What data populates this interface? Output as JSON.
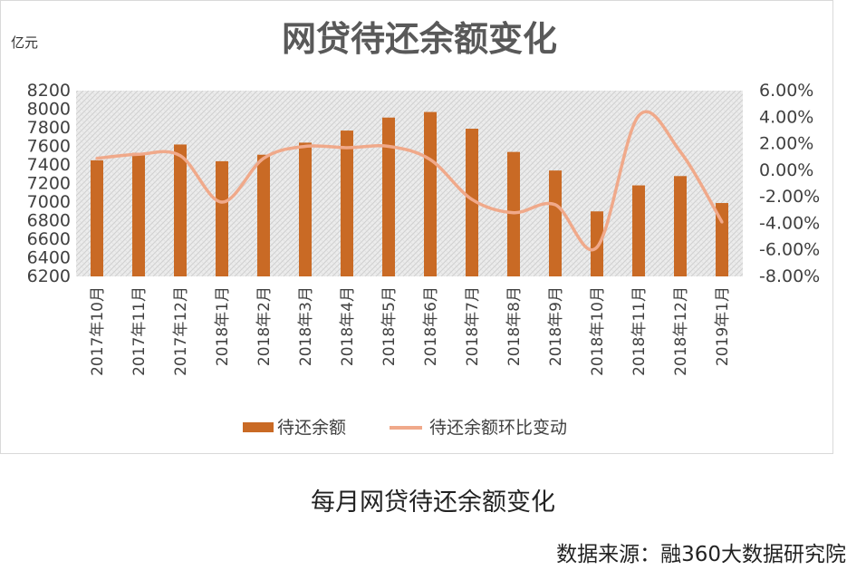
{
  "chart_data": {
    "type": "bar",
    "title": "网贷待还余额变化",
    "ylabel": "亿元",
    "categories": [
      "2017年10月",
      "2017年11月",
      "2017年12月",
      "2018年1月",
      "2018年2月",
      "2018年3月",
      "2018年4月",
      "2018年5月",
      "2018年6月",
      "2018年7月",
      "2018年8月",
      "2018年9月",
      "2018年10月",
      "2018年11月",
      "2018年12月",
      "2019年1月"
    ],
    "ylim": [
      6200,
      8200
    ],
    "y_ticks": [
      "8200",
      "8000",
      "7800",
      "7600",
      "7400",
      "7200",
      "7000",
      "6800",
      "6600",
      "6400",
      "6200"
    ],
    "y2lim": [
      -0.08,
      0.06
    ],
    "y2_ticks": [
      "6.00%",
      "4.00%",
      "2.00%",
      "0.00%",
      "-2.00%",
      "-4.00%",
      "-6.00%",
      "-8.00%"
    ],
    "series": [
      {
        "name": "待还余额",
        "type": "bar",
        "color": "#c96a25",
        "values": [
          7450,
          7530,
          7620,
          7440,
          7510,
          7640,
          7770,
          7910,
          7970,
          7790,
          7540,
          7340,
          6900,
          7180,
          7280,
          6990
        ]
      },
      {
        "name": "待还余额环比变动",
        "type": "line",
        "color": "#f0a98a",
        "values": [
          0.009,
          0.012,
          0.011,
          -0.024,
          0.009,
          0.018,
          0.017,
          0.018,
          0.008,
          -0.022,
          -0.032,
          -0.026,
          -0.058,
          0.041,
          0.014,
          -0.039
        ]
      }
    ],
    "grid": false,
    "legend": "bottom"
  },
  "caption": "每月网贷待还余额变化",
  "source": "数据来源：融360大数据研究院"
}
